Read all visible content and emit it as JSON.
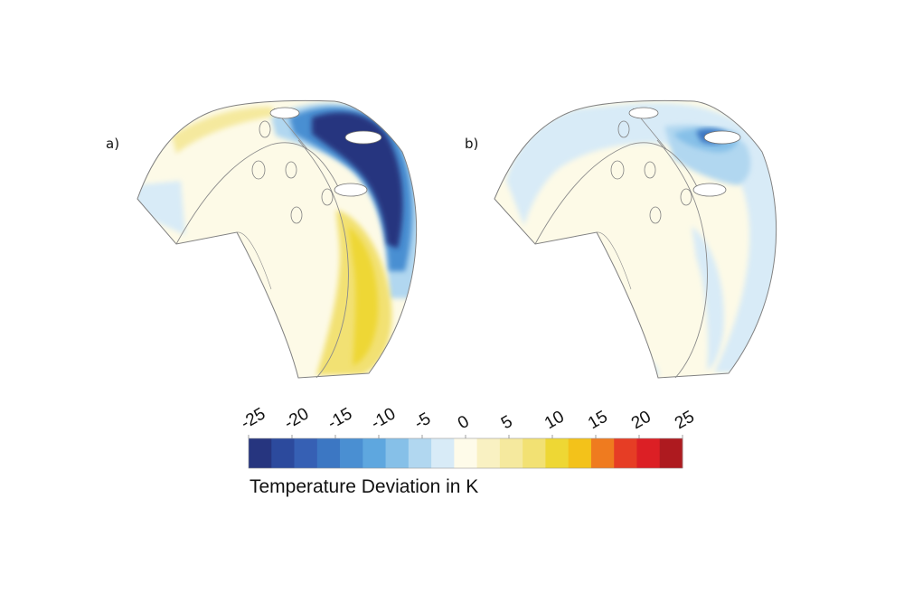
{
  "panels": [
    {
      "label": "a)"
    },
    {
      "label": "b)"
    }
  ],
  "colorbar": {
    "title": "Temperature Deviation in K",
    "ticks": [
      "-25",
      "-20",
      "-15",
      "-10",
      "-5",
      "0",
      "5",
      "10",
      "15",
      "20",
      "25"
    ],
    "range": [
      -25,
      25
    ],
    "colors": [
      "#26357f",
      "#2c4a9d",
      "#3660b4",
      "#3c77c3",
      "#4a8fd2",
      "#5ea7df",
      "#86c0e8",
      "#b1d7f0",
      "#d8ebf7",
      "#fefbe9",
      "#f9f1c2",
      "#f5e99e",
      "#f2e173",
      "#eed734",
      "#f3c21a",
      "#ef7b1f",
      "#e63d25",
      "#dc1f25",
      "#ae1a1f"
    ]
  },
  "colors": {
    "base_cream": "#fdfae7",
    "light_blue": "#d8ebf7",
    "mid_blue": "#4a8fd2",
    "dark_blue": "#26357f",
    "yellow": "#eee062",
    "outline": "#808080"
  }
}
